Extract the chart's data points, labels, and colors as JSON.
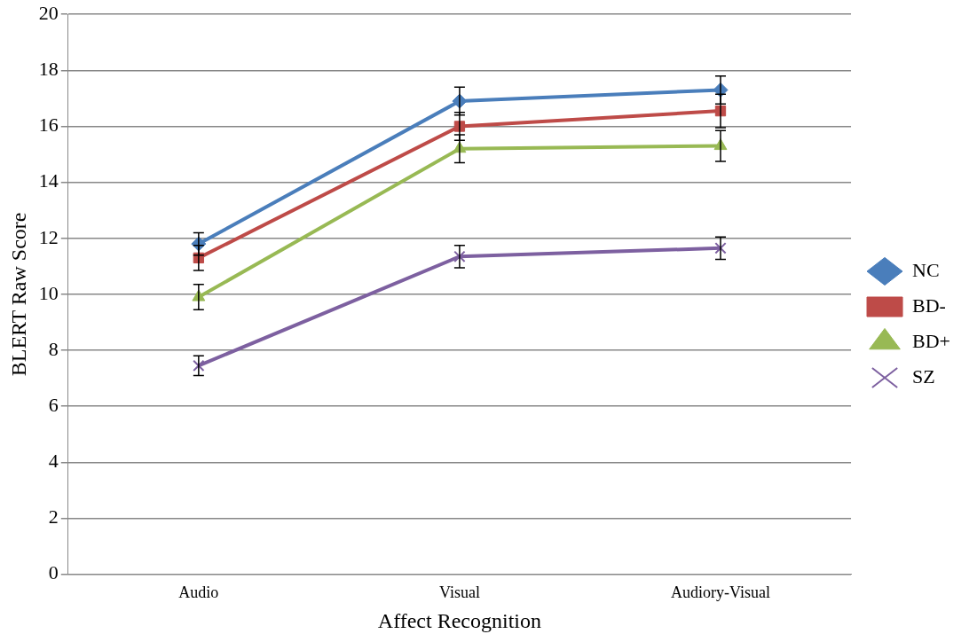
{
  "chart_data": {
    "type": "line",
    "xlabel": "Affect Recognition",
    "ylabel": "BLERT Raw Score",
    "categories": [
      "Audio",
      "Visual",
      "Audiory-Visual"
    ],
    "series": [
      {
        "name": "NC",
        "color": "#4a7ebb",
        "marker": "diamond",
        "values": [
          11.8,
          16.9,
          17.3
        ],
        "errors": [
          0.4,
          0.5,
          0.5
        ]
      },
      {
        "name": "BD-",
        "color": "#be4b48",
        "marker": "square",
        "values": [
          11.3,
          16.0,
          16.55
        ],
        "errors": [
          0.45,
          0.5,
          0.6
        ]
      },
      {
        "name": "BD+",
        "color": "#98b954",
        "marker": "triangle",
        "values": [
          9.9,
          15.2,
          15.3
        ],
        "errors": [
          0.45,
          0.5,
          0.55
        ]
      },
      {
        "name": "SZ",
        "color": "#7d60a0",
        "marker": "cross",
        "values": [
          7.45,
          11.35,
          11.65
        ],
        "errors": [
          0.35,
          0.4,
          0.4
        ]
      }
    ],
    "ylim": [
      0,
      20
    ],
    "yticks": [
      0,
      2,
      4,
      6,
      8,
      10,
      12,
      14,
      16,
      18,
      20
    ],
    "grid": "y",
    "legend": "right"
  }
}
